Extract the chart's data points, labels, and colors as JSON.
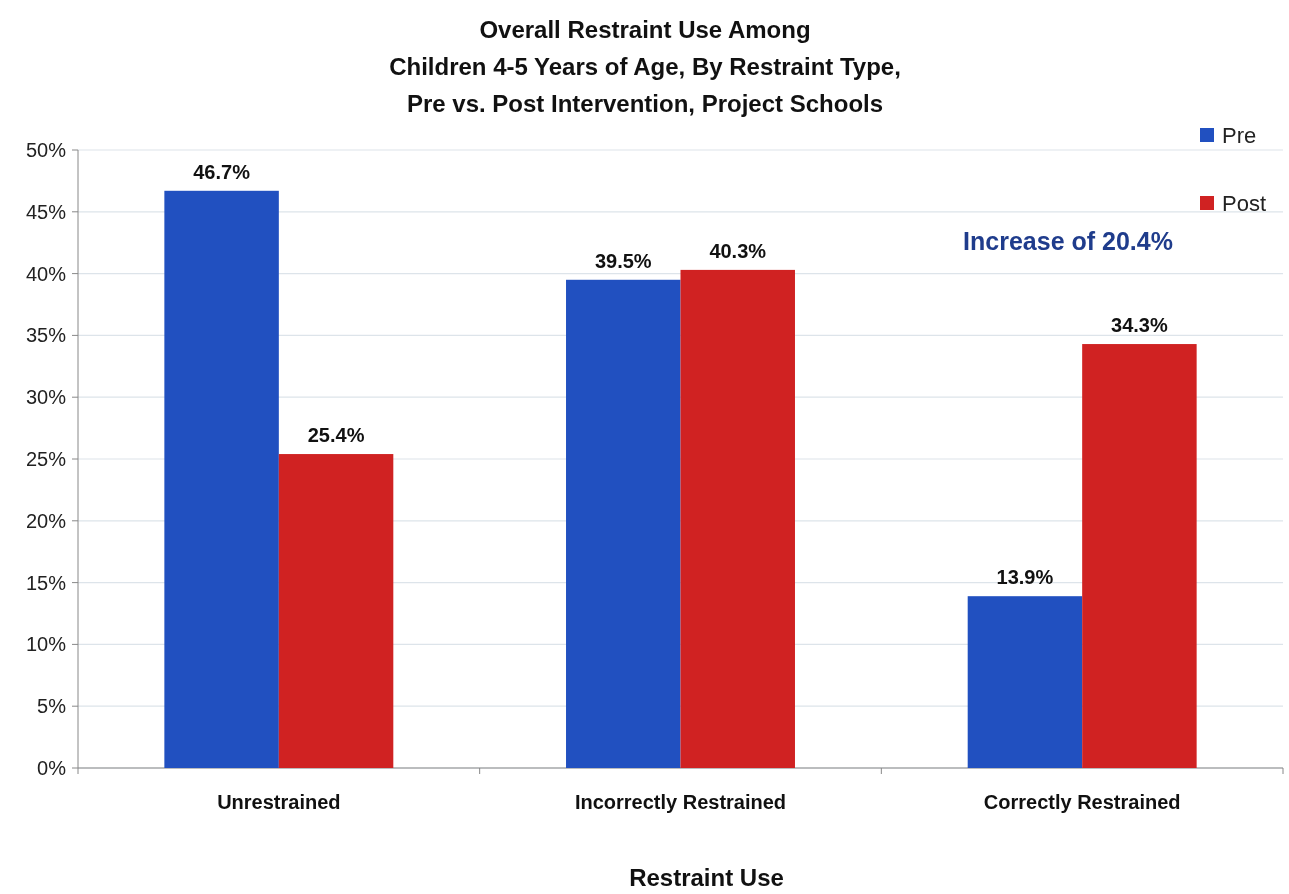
{
  "chart_data": {
    "type": "bar",
    "title": "Overall Restraint Use Among\nChildren 4-5 Years of Age, By Restraint Type,\nPre vs. Post Intervention, Project Schools",
    "xlabel": "Restraint Use",
    "categories": [
      "Unrestrained",
      "Incorrectly Restrained",
      "Correctly Restrained"
    ],
    "series": [
      {
        "name": "Pre",
        "color": "#2150c0",
        "values": [
          46.7,
          39.5,
          13.9
        ],
        "value_labels": [
          "46.7%",
          "39.5%",
          "13.9%"
        ]
      },
      {
        "name": "Post",
        "color": "#d02222",
        "values": [
          25.4,
          40.3,
          34.3
        ],
        "value_labels": [
          "25.4%",
          "40.3%",
          "34.3%"
        ]
      }
    ],
    "ylim": [
      0,
      50
    ],
    "yticks": [
      {
        "value": 0,
        "label": "0%"
      },
      {
        "value": 5,
        "label": "5%"
      },
      {
        "value": 10,
        "label": "10%"
      },
      {
        "value": 15,
        "label": "15%"
      },
      {
        "value": 20,
        "label": "20%"
      },
      {
        "value": 25,
        "label": "25%"
      },
      {
        "value": 30,
        "label": "30%"
      },
      {
        "value": 35,
        "label": "35%"
      },
      {
        "value": 40,
        "label": "40%"
      },
      {
        "value": 45,
        "label": "45%"
      },
      {
        "value": 50,
        "label": "50%"
      }
    ],
    "grid": "y",
    "legend": "top right",
    "annotations": [
      "Increase of 20.4%"
    ]
  }
}
